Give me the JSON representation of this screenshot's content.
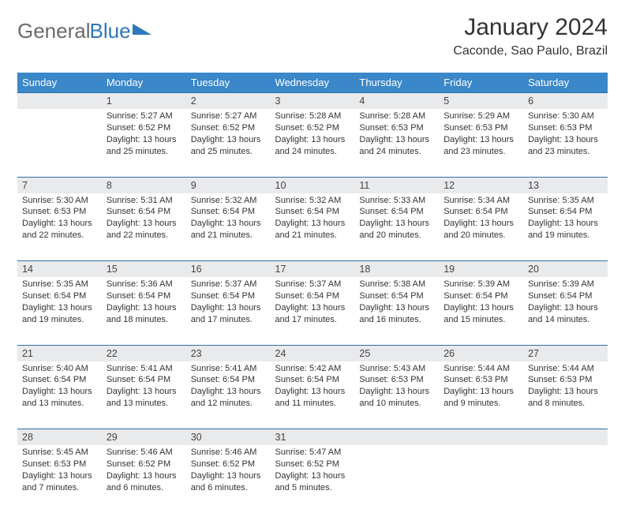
{
  "logo": {
    "part1": "General",
    "part2": "Blue"
  },
  "title": "January 2024",
  "subtitle": "Caconde, Sao Paulo, Brazil",
  "header_bg": "#3a87c9",
  "daynum_bg": "#e9eaec",
  "border_color": "#2d6fa8",
  "weekdays": [
    "Sunday",
    "Monday",
    "Tuesday",
    "Wednesday",
    "Thursday",
    "Friday",
    "Saturday"
  ],
  "weeks": [
    {
      "nums": [
        "",
        "1",
        "2",
        "3",
        "4",
        "5",
        "6"
      ],
      "cells": [
        [],
        [
          "Sunrise: 5:27 AM",
          "Sunset: 6:52 PM",
          "Daylight: 13 hours",
          "and 25 minutes."
        ],
        [
          "Sunrise: 5:27 AM",
          "Sunset: 6:52 PM",
          "Daylight: 13 hours",
          "and 25 minutes."
        ],
        [
          "Sunrise: 5:28 AM",
          "Sunset: 6:52 PM",
          "Daylight: 13 hours",
          "and 24 minutes."
        ],
        [
          "Sunrise: 5:28 AM",
          "Sunset: 6:53 PM",
          "Daylight: 13 hours",
          "and 24 minutes."
        ],
        [
          "Sunrise: 5:29 AM",
          "Sunset: 6:53 PM",
          "Daylight: 13 hours",
          "and 23 minutes."
        ],
        [
          "Sunrise: 5:30 AM",
          "Sunset: 6:53 PM",
          "Daylight: 13 hours",
          "and 23 minutes."
        ]
      ]
    },
    {
      "nums": [
        "7",
        "8",
        "9",
        "10",
        "11",
        "12",
        "13"
      ],
      "cells": [
        [
          "Sunrise: 5:30 AM",
          "Sunset: 6:53 PM",
          "Daylight: 13 hours",
          "and 22 minutes."
        ],
        [
          "Sunrise: 5:31 AM",
          "Sunset: 6:54 PM",
          "Daylight: 13 hours",
          "and 22 minutes."
        ],
        [
          "Sunrise: 5:32 AM",
          "Sunset: 6:54 PM",
          "Daylight: 13 hours",
          "and 21 minutes."
        ],
        [
          "Sunrise: 5:32 AM",
          "Sunset: 6:54 PM",
          "Daylight: 13 hours",
          "and 21 minutes."
        ],
        [
          "Sunrise: 5:33 AM",
          "Sunset: 6:54 PM",
          "Daylight: 13 hours",
          "and 20 minutes."
        ],
        [
          "Sunrise: 5:34 AM",
          "Sunset: 6:54 PM",
          "Daylight: 13 hours",
          "and 20 minutes."
        ],
        [
          "Sunrise: 5:35 AM",
          "Sunset: 6:54 PM",
          "Daylight: 13 hours",
          "and 19 minutes."
        ]
      ]
    },
    {
      "nums": [
        "14",
        "15",
        "16",
        "17",
        "18",
        "19",
        "20"
      ],
      "cells": [
        [
          "Sunrise: 5:35 AM",
          "Sunset: 6:54 PM",
          "Daylight: 13 hours",
          "and 19 minutes."
        ],
        [
          "Sunrise: 5:36 AM",
          "Sunset: 6:54 PM",
          "Daylight: 13 hours",
          "and 18 minutes."
        ],
        [
          "Sunrise: 5:37 AM",
          "Sunset: 6:54 PM",
          "Daylight: 13 hours",
          "and 17 minutes."
        ],
        [
          "Sunrise: 5:37 AM",
          "Sunset: 6:54 PM",
          "Daylight: 13 hours",
          "and 17 minutes."
        ],
        [
          "Sunrise: 5:38 AM",
          "Sunset: 6:54 PM",
          "Daylight: 13 hours",
          "and 16 minutes."
        ],
        [
          "Sunrise: 5:39 AM",
          "Sunset: 6:54 PM",
          "Daylight: 13 hours",
          "and 15 minutes."
        ],
        [
          "Sunrise: 5:39 AM",
          "Sunset: 6:54 PM",
          "Daylight: 13 hours",
          "and 14 minutes."
        ]
      ]
    },
    {
      "nums": [
        "21",
        "22",
        "23",
        "24",
        "25",
        "26",
        "27"
      ],
      "cells": [
        [
          "Sunrise: 5:40 AM",
          "Sunset: 6:54 PM",
          "Daylight: 13 hours",
          "and 13 minutes."
        ],
        [
          "Sunrise: 5:41 AM",
          "Sunset: 6:54 PM",
          "Daylight: 13 hours",
          "and 13 minutes."
        ],
        [
          "Sunrise: 5:41 AM",
          "Sunset: 6:54 PM",
          "Daylight: 13 hours",
          "and 12 minutes."
        ],
        [
          "Sunrise: 5:42 AM",
          "Sunset: 6:54 PM",
          "Daylight: 13 hours",
          "and 11 minutes."
        ],
        [
          "Sunrise: 5:43 AM",
          "Sunset: 6:53 PM",
          "Daylight: 13 hours",
          "and 10 minutes."
        ],
        [
          "Sunrise: 5:44 AM",
          "Sunset: 6:53 PM",
          "Daylight: 13 hours",
          "and 9 minutes."
        ],
        [
          "Sunrise: 5:44 AM",
          "Sunset: 6:53 PM",
          "Daylight: 13 hours",
          "and 8 minutes."
        ]
      ]
    },
    {
      "nums": [
        "28",
        "29",
        "30",
        "31",
        "",
        "",
        ""
      ],
      "cells": [
        [
          "Sunrise: 5:45 AM",
          "Sunset: 6:53 PM",
          "Daylight: 13 hours",
          "and 7 minutes."
        ],
        [
          "Sunrise: 5:46 AM",
          "Sunset: 6:52 PM",
          "Daylight: 13 hours",
          "and 6 minutes."
        ],
        [
          "Sunrise: 5:46 AM",
          "Sunset: 6:52 PM",
          "Daylight: 13 hours",
          "and 6 minutes."
        ],
        [
          "Sunrise: 5:47 AM",
          "Sunset: 6:52 PM",
          "Daylight: 13 hours",
          "and 5 minutes."
        ],
        [],
        [],
        []
      ]
    }
  ]
}
